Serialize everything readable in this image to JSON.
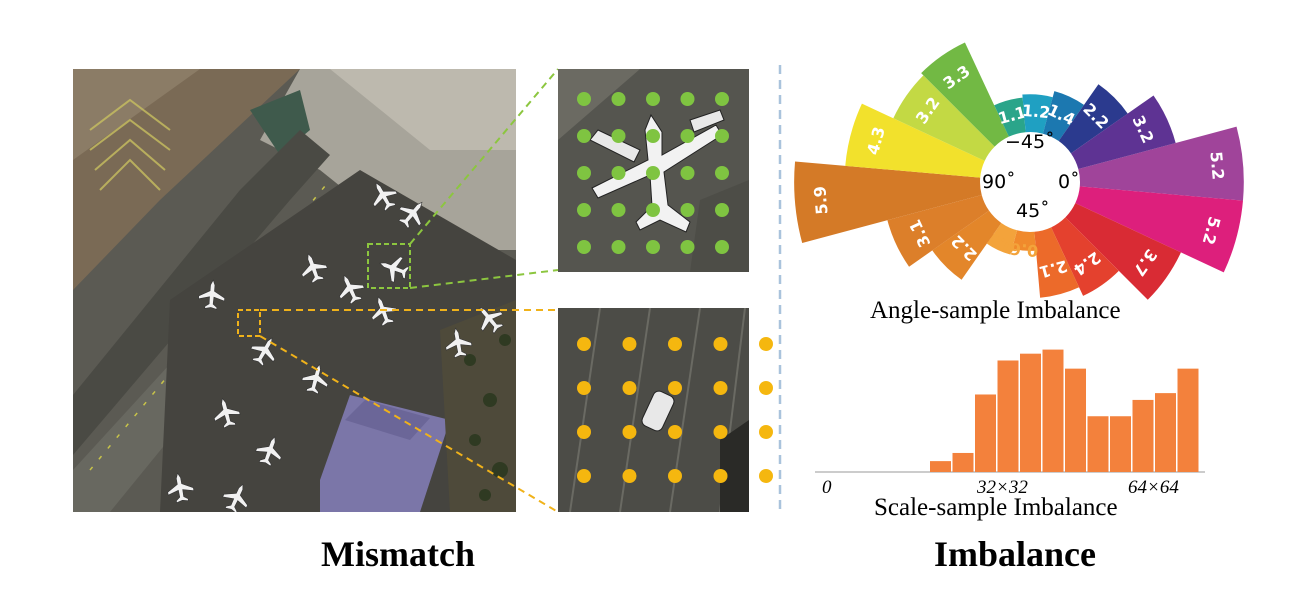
{
  "left": {
    "caption": "Mismatch"
  },
  "right": {
    "caption": "Imbalance"
  },
  "angle_chart": {
    "caption": "Angle-sample Imbalance",
    "center_labels": {
      "top": "−45˚",
      "left": "90˚",
      "right": "0˚",
      "bottom": "45˚"
    },
    "sectors": [
      {
        "label": "5.2",
        "value": 5.2,
        "color": "#a0449a"
      },
      {
        "label": "5.2",
        "value": 5.2,
        "color": "#dd1f7c"
      },
      {
        "label": "3.7",
        "value": 3.7,
        "color": "#d92b34"
      },
      {
        "label": "2.4",
        "value": 2.4,
        "color": "#e4412e"
      },
      {
        "label": "2.1",
        "value": 2.1,
        "color": "#ec6a2a"
      },
      {
        "label": "0.6",
        "value": 0.6,
        "color": "#f08a2c"
      },
      {
        "label": "0.8",
        "value": 0.8,
        "color": "#f3a33b"
      },
      {
        "label": "2.2",
        "value": 2.2,
        "color": "#e3862a"
      },
      {
        "label": "3.1",
        "value": 3.1,
        "color": "#dc7f2a"
      },
      {
        "label": "5.9",
        "value": 5.9,
        "color": "#d47a27"
      },
      {
        "label": "4.3",
        "value": 4.3,
        "color": "#f2e12c"
      },
      {
        "label": "3.2",
        "value": 3.2,
        "color": "#c3d944"
      },
      {
        "label": "3.3",
        "value": 3.3,
        "color": "#72b944"
      },
      {
        "label": "1.1",
        "value": 1.1,
        "color": "#2aa58a"
      },
      {
        "label": "1.2",
        "value": 1.2,
        "color": "#1fa0c2"
      },
      {
        "label": "1.4",
        "value": 1.4,
        "color": "#1c78b0"
      },
      {
        "label": "2.2",
        "value": 2.2,
        "color": "#2b3a8e"
      },
      {
        "label": "3.2",
        "value": 3.2,
        "color": "#5e3393"
      }
    ]
  },
  "scale_chart": {
    "caption": "Scale-sample Imbalance",
    "ticks": [
      "0",
      "32×32",
      "64×64"
    ],
    "bar_color": "#f3813c",
    "bars": [
      0.08,
      0.14,
      0.57,
      0.82,
      0.87,
      0.9,
      0.76,
      0.41,
      0.41,
      0.53,
      0.58,
      0.76
    ]
  },
  "colors": {
    "divider": "#a9c3dc",
    "green": "#7fc441",
    "orange": "#f5b70f",
    "green_box": "#8cc63f",
    "orange_box": "#f0b21a"
  }
}
